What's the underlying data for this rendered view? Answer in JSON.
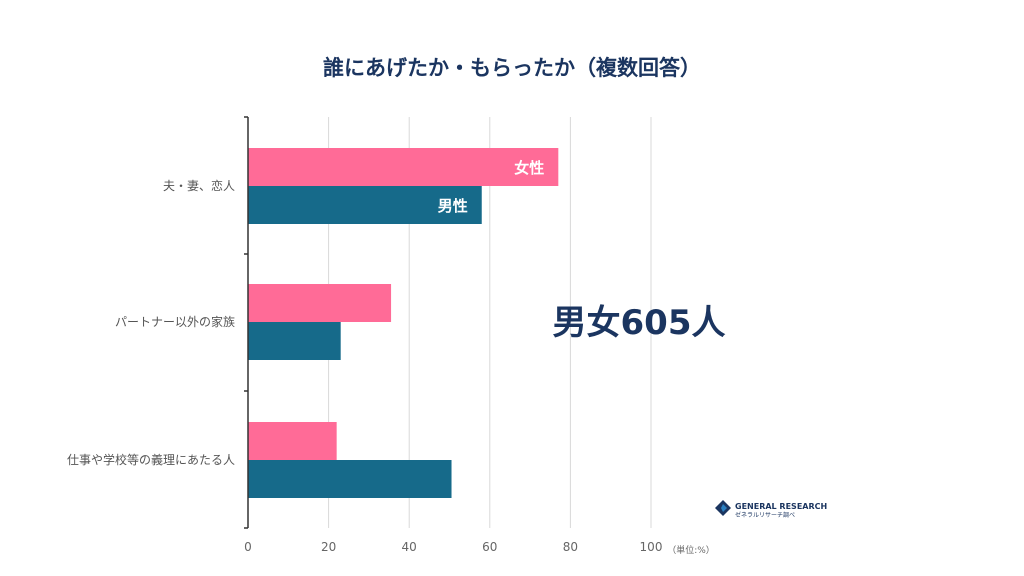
{
  "chart_data": {
    "type": "bar",
    "orientation": "horizontal",
    "title": "誰にあげたか・もらったか（複数回答）",
    "categories": [
      "夫・妻、恋人",
      "パートナー以外の家族",
      "仕事や学校等の義理にあたる人"
    ],
    "series": [
      {
        "name": "女性",
        "values": [
          77,
          35.5,
          22
        ],
        "color": "#ff6b97"
      },
      {
        "name": "男性",
        "values": [
          58,
          23,
          50.5
        ],
        "color": "#166a8a"
      }
    ],
    "xlim": [
      0,
      100
    ],
    "xticks": [
      0,
      20,
      40,
      60,
      80,
      100
    ],
    "unit": "（単位:%）",
    "annotation": "男女605人",
    "grid": true,
    "legend": "inline-on-first-bars"
  },
  "logo": {
    "name": "GENERAL RESEARCH",
    "subtitle": "ゼネラルリサーチ調べ",
    "colors": [
      "#1b3560",
      "#2a7fc0"
    ]
  }
}
